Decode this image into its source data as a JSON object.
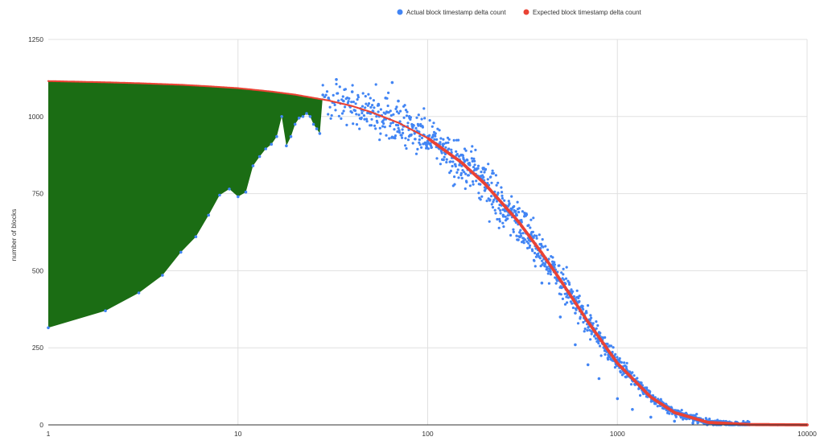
{
  "chart_data": {
    "type": "scatter",
    "xlabel": "",
    "ylabel": "number of blocks",
    "x_scale": "log",
    "xlim": [
      1,
      10000
    ],
    "ylim": [
      0,
      1250
    ],
    "x_ticks": [
      "1",
      "10",
      "100",
      "1000",
      "10000"
    ],
    "y_ticks": [
      "0",
      "250",
      "500",
      "750",
      "1000",
      "1250"
    ],
    "grid": true,
    "legend_position": "top",
    "series": [
      {
        "name": "Actual block timestamp delta count",
        "color": "#4285f4",
        "marker": "circle",
        "x": [
          1,
          2,
          3,
          4,
          5,
          6,
          7,
          8,
          9,
          10,
          11,
          12,
          13,
          14,
          15,
          16,
          17,
          18,
          19,
          20,
          21,
          22,
          23,
          24,
          25,
          26,
          27,
          28,
          30,
          33,
          36,
          40,
          45,
          50,
          55,
          60,
          65,
          70,
          80,
          90,
          100,
          120,
          150,
          200,
          250,
          300,
          400,
          500,
          600,
          700,
          800,
          1000,
          1200,
          1500,
          2000,
          2500,
          3000,
          4000,
          5000,
          7000,
          10000
        ],
        "y": [
          315,
          370,
          428,
          485,
          560,
          610,
          680,
          745,
          765,
          740,
          755,
          840,
          870,
          895,
          910,
          935,
          1000,
          905,
          935,
          975,
          995,
          1000,
          1010,
          1000,
          975,
          960,
          945,
          1070,
          1060,
          1120,
          1050,
          1080,
          1020,
          1010,
          1040,
          1060,
          1110,
          1050,
          1000,
          950,
          935,
          910,
          875,
          760,
          680,
          600,
          460,
          350,
          260,
          195,
          150,
          85,
          50,
          25,
          12,
          6,
          3,
          1,
          1,
          0,
          0
        ]
      },
      {
        "name": "Expected block timestamp delta count",
        "color": "#ea4335",
        "marker": "circle",
        "x": [
          1,
          2,
          3,
          5,
          7,
          10,
          15,
          20,
          30,
          40,
          50,
          70,
          100,
          150,
          200,
          300,
          400,
          500,
          700,
          1000,
          1500,
          2000,
          3000,
          5000,
          10000
        ],
        "y": [
          1115,
          1111,
          1108,
          1103,
          1098,
          1092,
          1081,
          1071,
          1052,
          1034,
          1015,
          980,
          930,
          852,
          782,
          660,
          557,
          470,
          334,
          200,
          90,
          40,
          8,
          1,
          0
        ]
      }
    ],
    "shaded_area": {
      "color": "#1b6d14",
      "x_range": [
        1,
        28
      ],
      "upper": "expected",
      "lower": "actual"
    }
  }
}
